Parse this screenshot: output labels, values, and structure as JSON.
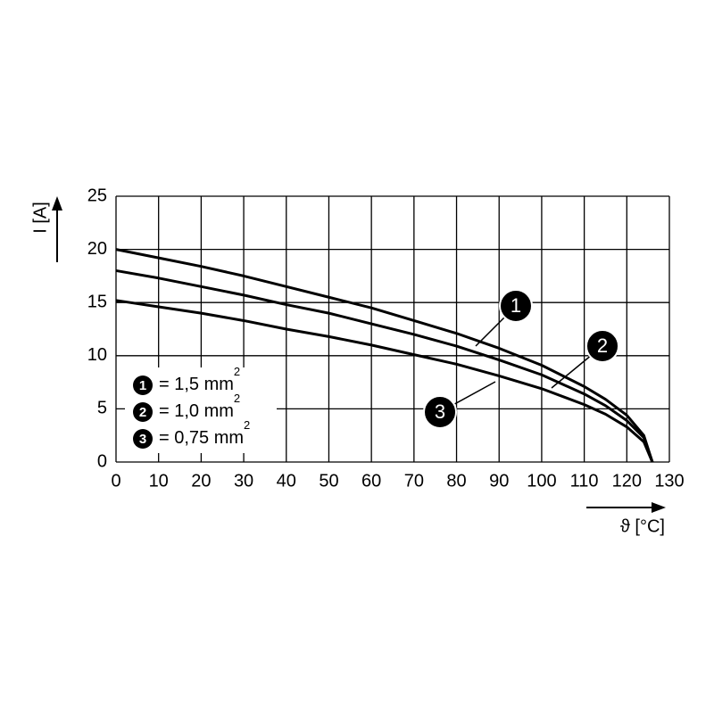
{
  "chart_data": {
    "type": "line",
    "ylabel": "I [A]",
    "xlabel": "ϑ [°C]",
    "xlim": [
      0,
      130
    ],
    "ylim": [
      0,
      25
    ],
    "xticks": [
      0,
      10,
      20,
      30,
      40,
      50,
      60,
      70,
      80,
      90,
      100,
      110,
      120,
      130
    ],
    "yticks": [
      0,
      5,
      10,
      15,
      20,
      25
    ],
    "grid": true,
    "x": [
      0,
      10,
      20,
      30,
      40,
      50,
      60,
      70,
      80,
      90,
      100,
      110,
      115,
      120,
      124,
      126
    ],
    "series": [
      {
        "name": "1",
        "legend_text": "= 1,5 mm",
        "superscript": "2",
        "color": "#000000",
        "values": [
          20,
          19.2,
          18.4,
          17.5,
          16.5,
          15.5,
          14.5,
          13.3,
          12.1,
          10.7,
          9.1,
          7.1,
          5.9,
          4.4,
          2.5,
          0
        ]
      },
      {
        "name": "2",
        "legend_text": "= 1,0 mm",
        "superscript": "2",
        "color": "#000000",
        "values": [
          18,
          17.3,
          16.5,
          15.7,
          14.8,
          14.0,
          13.0,
          12.0,
          10.9,
          9.6,
          8.2,
          6.4,
          5.3,
          3.9,
          2.3,
          0
        ]
      },
      {
        "name": "3",
        "legend_text": "= 0,75 mm",
        "superscript": "2",
        "color": "#000000",
        "values": [
          15.2,
          14.6,
          14.0,
          13.3,
          12.5,
          11.8,
          11.0,
          10.1,
          9.2,
          8.1,
          6.9,
          5.4,
          4.5,
          3.3,
          1.9,
          0
        ]
      }
    ]
  }
}
